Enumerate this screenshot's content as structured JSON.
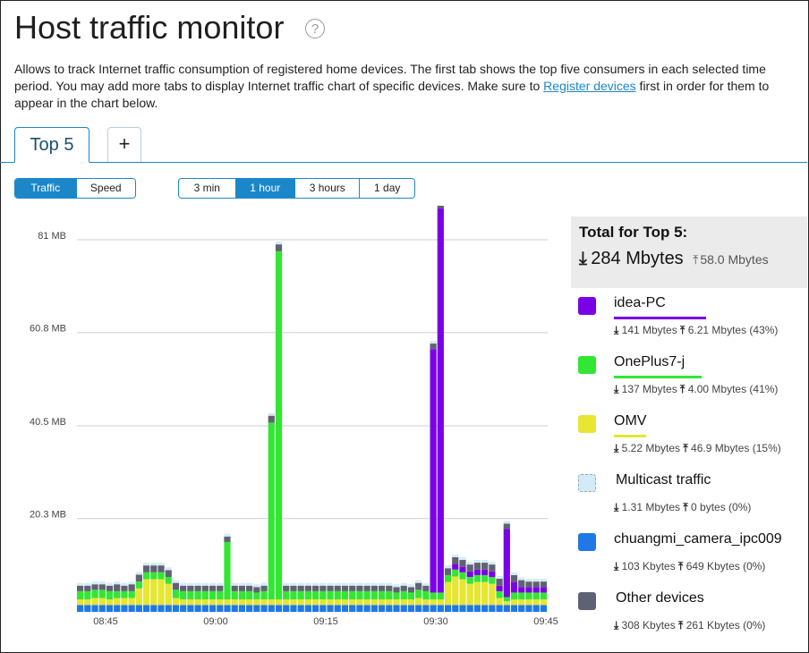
{
  "page": {
    "title": "Host traffic monitor",
    "help_icon": "question-circle-icon",
    "description_before": "Allows to track Internet traffic consumption of registered home devices. The first tab shows the top five consumers in each selected time period. You may add more tabs to display Internet traffic chart of specific devices. Make sure to ",
    "description_link": "Register devices",
    "description_after": " first in order for them to appear in the chart below."
  },
  "tabs": {
    "active": "Top 5",
    "add": "+"
  },
  "mode_toggle": {
    "traffic": "Traffic",
    "speed": "Speed",
    "selected": "Traffic"
  },
  "ranges": {
    "items": [
      "3 min",
      "1 hour",
      "3 hours",
      "1 day"
    ],
    "selected": "1 hour"
  },
  "summary": {
    "title": "Total for Top 5:",
    "download": "284 Mbytes",
    "upload": "58.0 Mbytes"
  },
  "legend": [
    {
      "name": "idea-PC",
      "color": "#7a00e6",
      "download": "141 Mbytes",
      "upload": "6.21 Mbytes (43%)",
      "bar_fraction": 0.43
    },
    {
      "name": "OnePlus7-j",
      "color": "#33e633",
      "download": "137 Mbytes",
      "upload": "4.00 Mbytes (41%)",
      "bar_fraction": 0.41
    },
    {
      "name": "OMV",
      "color": "#e6e633",
      "download": "5.22 Mbytes",
      "upload": "46.9 Mbytes (15%)",
      "bar_fraction": 0.15
    },
    {
      "name": "Multicast traffic",
      "color": "#d5eaf7",
      "download": "1.31 Mbytes",
      "upload": "0 bytes (0%)",
      "bar_fraction": 0
    },
    {
      "name": "chuangmi_camera_ipc009",
      "color": "#1f78e6",
      "download": "103 Kbytes",
      "upload": "649 Kbytes (0%)",
      "bar_fraction": 0
    },
    {
      "name": "Other devices",
      "color": "#5f6273",
      "download": "308 Kbytes",
      "upload": "261 Kbytes (0%)",
      "bar_fraction": 0
    }
  ],
  "chart_data": {
    "type": "bar",
    "stacked": true,
    "y_ticks": [
      "20.3 MB",
      "40.5 MB",
      "60.8 MB",
      "81 MB"
    ],
    "y_tick_values": [
      20.3,
      40.5,
      60.8,
      81
    ],
    "ylim": [
      0,
      81
    ],
    "x_ticks": [
      "08:45",
      "09:00",
      "09:15",
      "09:30",
      "09:45"
    ],
    "grid": true,
    "series_order": [
      "chuangmi_camera_ipc009",
      "OMV",
      "OnePlus7-j",
      "idea-PC",
      "Other devices",
      "Multicast traffic"
    ],
    "bars": [
      [
        1.5,
        1.2,
        1.8,
        0,
        1.2,
        0.6
      ],
      [
        1.5,
        1.2,
        1.8,
        0,
        1.2,
        0.6
      ],
      [
        1.5,
        1.5,
        1.8,
        0,
        1.2,
        0.6
      ],
      [
        1.5,
        1.5,
        1.8,
        0,
        1.2,
        0.6
      ],
      [
        1.5,
        1.2,
        1.8,
        0,
        1.2,
        0.6
      ],
      [
        1.5,
        1.5,
        1.5,
        0,
        1.5,
        0.6
      ],
      [
        1.5,
        1.5,
        1.5,
        0,
        1.2,
        0.6
      ],
      [
        1.5,
        1.5,
        1.5,
        0,
        1.5,
        0.6
      ],
      [
        1.5,
        3.6,
        1.5,
        0,
        1.5,
        0.6
      ],
      [
        1.5,
        5.6,
        1.5,
        0,
        1.5,
        0.6
      ],
      [
        1.5,
        5.6,
        1.5,
        0,
        1.5,
        0.6
      ],
      [
        1.5,
        5.6,
        1.5,
        0,
        1.5,
        0.6
      ],
      [
        1.5,
        4.6,
        1.5,
        0,
        1.5,
        0.6
      ],
      [
        1.5,
        1.5,
        1.8,
        0,
        1.5,
        0.6
      ],
      [
        1.5,
        1.2,
        1.8,
        0,
        1.2,
        0.6
      ],
      [
        1.5,
        1.2,
        1.8,
        0,
        1.2,
        0.6
      ],
      [
        1.5,
        1.2,
        1.8,
        0,
        1.2,
        0.6
      ],
      [
        1.5,
        1.2,
        1.8,
        0,
        1.2,
        0.6
      ],
      [
        1.5,
        1.2,
        1.8,
        0,
        1.2,
        0.6
      ],
      [
        1.5,
        1.2,
        1.8,
        0,
        1.2,
        0.6
      ],
      [
        1.5,
        1.2,
        12.5,
        0,
        1.2,
        0.6
      ],
      [
        1.5,
        1.2,
        1.8,
        0,
        1.2,
        0.6
      ],
      [
        1.5,
        1.2,
        1.8,
        0,
        1.2,
        0.6
      ],
      [
        1.5,
        1.2,
        1.8,
        0,
        1.2,
        0.6
      ],
      [
        1.5,
        1.2,
        1.5,
        0,
        1.2,
        0.6
      ],
      [
        1.5,
        1.2,
        1.8,
        0,
        1.2,
        0.6
      ],
      [
        1.5,
        1.2,
        38.5,
        0,
        1.5,
        0.6
      ],
      [
        1.5,
        1.2,
        75.8,
        0,
        1.5,
        0.6
      ],
      [
        1.5,
        1.2,
        1.8,
        0,
        1.2,
        0.6
      ],
      [
        1.5,
        1.2,
        1.8,
        0,
        1.2,
        0.6
      ],
      [
        1.5,
        1.2,
        1.8,
        0,
        1.2,
        0.6
      ],
      [
        1.5,
        1.2,
        1.8,
        0,
        1.2,
        0.6
      ],
      [
        1.5,
        1.2,
        1.8,
        0,
        1.2,
        0.6
      ],
      [
        1.5,
        1.2,
        1.8,
        0,
        1.2,
        0.6
      ],
      [
        1.5,
        1.2,
        1.8,
        0,
        1.2,
        0.6
      ],
      [
        1.5,
        1.2,
        1.8,
        0,
        1.2,
        0.6
      ],
      [
        1.5,
        1.2,
        1.8,
        0,
        1.2,
        0.6
      ],
      [
        1.5,
        1.2,
        1.8,
        0,
        1.2,
        0.6
      ],
      [
        1.5,
        1.2,
        1.8,
        0,
        1.2,
        0.6
      ],
      [
        1.5,
        1.2,
        1.8,
        0,
        1.2,
        0.6
      ],
      [
        1.5,
        1.2,
        1.8,
        0,
        1.2,
        0.6
      ],
      [
        1.5,
        1.2,
        1.8,
        0,
        1.2,
        0.6
      ],
      [
        1.5,
        1.2,
        1.8,
        0,
        1.2,
        0.6
      ],
      [
        1.5,
        1.2,
        1.5,
        0,
        1.2,
        0.6
      ],
      [
        1.5,
        1.2,
        1.8,
        0,
        1.2,
        0.6
      ],
      [
        1.5,
        1.2,
        1.5,
        0,
        1.2,
        0.6
      ],
      [
        1.5,
        1.5,
        1.8,
        0,
        1.5,
        0.6
      ],
      [
        1.5,
        1.2,
        1.8,
        0,
        1.2,
        0.6
      ],
      [
        1.5,
        1.2,
        1.5,
        53,
        1.2,
        0.6
      ],
      [
        1.5,
        1.2,
        1.5,
        83.6,
        1.5,
        0.6
      ],
      [
        1.5,
        5.0,
        1.5,
        0,
        1.5,
        0.6
      ],
      [
        1.5,
        6.2,
        1.5,
        1.2,
        1.5,
        0.6
      ],
      [
        1.5,
        5.6,
        1.5,
        1.2,
        1.5,
        0.6
      ],
      [
        1.5,
        4.6,
        1.5,
        1.2,
        1.5,
        0.6
      ],
      [
        1.5,
        5.0,
        1.5,
        1.2,
        1.5,
        0.6
      ],
      [
        1.5,
        5.0,
        1.5,
        1.2,
        1.5,
        0.6
      ],
      [
        1.5,
        4.6,
        1.5,
        1.2,
        1.5,
        0.6
      ],
      [
        1.5,
        1.5,
        1.5,
        1.2,
        1.5,
        0.6
      ],
      [
        1.5,
        0.8,
        0.9,
        14.8,
        1.2,
        0.6
      ],
      [
        1.5,
        1.2,
        1.5,
        2.3,
        1.5,
        0.6
      ],
      [
        1.5,
        1.2,
        1.5,
        1.2,
        1.5,
        0.6
      ],
      [
        1.5,
        1.2,
        1.5,
        1.2,
        1.2,
        0.6
      ],
      [
        1.5,
        1.2,
        1.5,
        1.2,
        1.2,
        0.6
      ],
      [
        1.5,
        1.2,
        1.5,
        1.2,
        1.2,
        0.6
      ]
    ]
  }
}
